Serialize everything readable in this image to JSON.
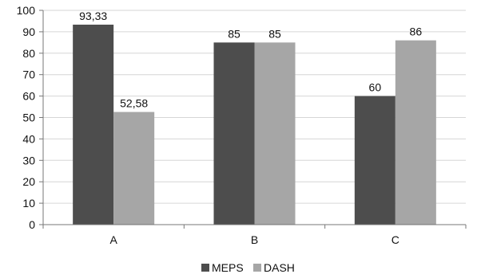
{
  "chart_data": {
    "type": "bar",
    "categories": [
      "A",
      "B",
      "C"
    ],
    "series": [
      {
        "name": "MEPS",
        "values": [
          93.33,
          85,
          60
        ],
        "labels": [
          "93,33",
          "85",
          "60"
        ],
        "color": "#4d4d4d"
      },
      {
        "name": "DASH",
        "values": [
          52.58,
          85,
          86
        ],
        "labels": [
          "52,58",
          "85",
          "86"
        ],
        "color": "#a6a6a6"
      }
    ],
    "ylim": [
      0,
      100
    ],
    "yticks": [
      "0",
      "10",
      "20",
      "30",
      "40",
      "50",
      "60",
      "70",
      "80",
      "90",
      "100"
    ],
    "grid": true,
    "legend": "bottom-center"
  }
}
